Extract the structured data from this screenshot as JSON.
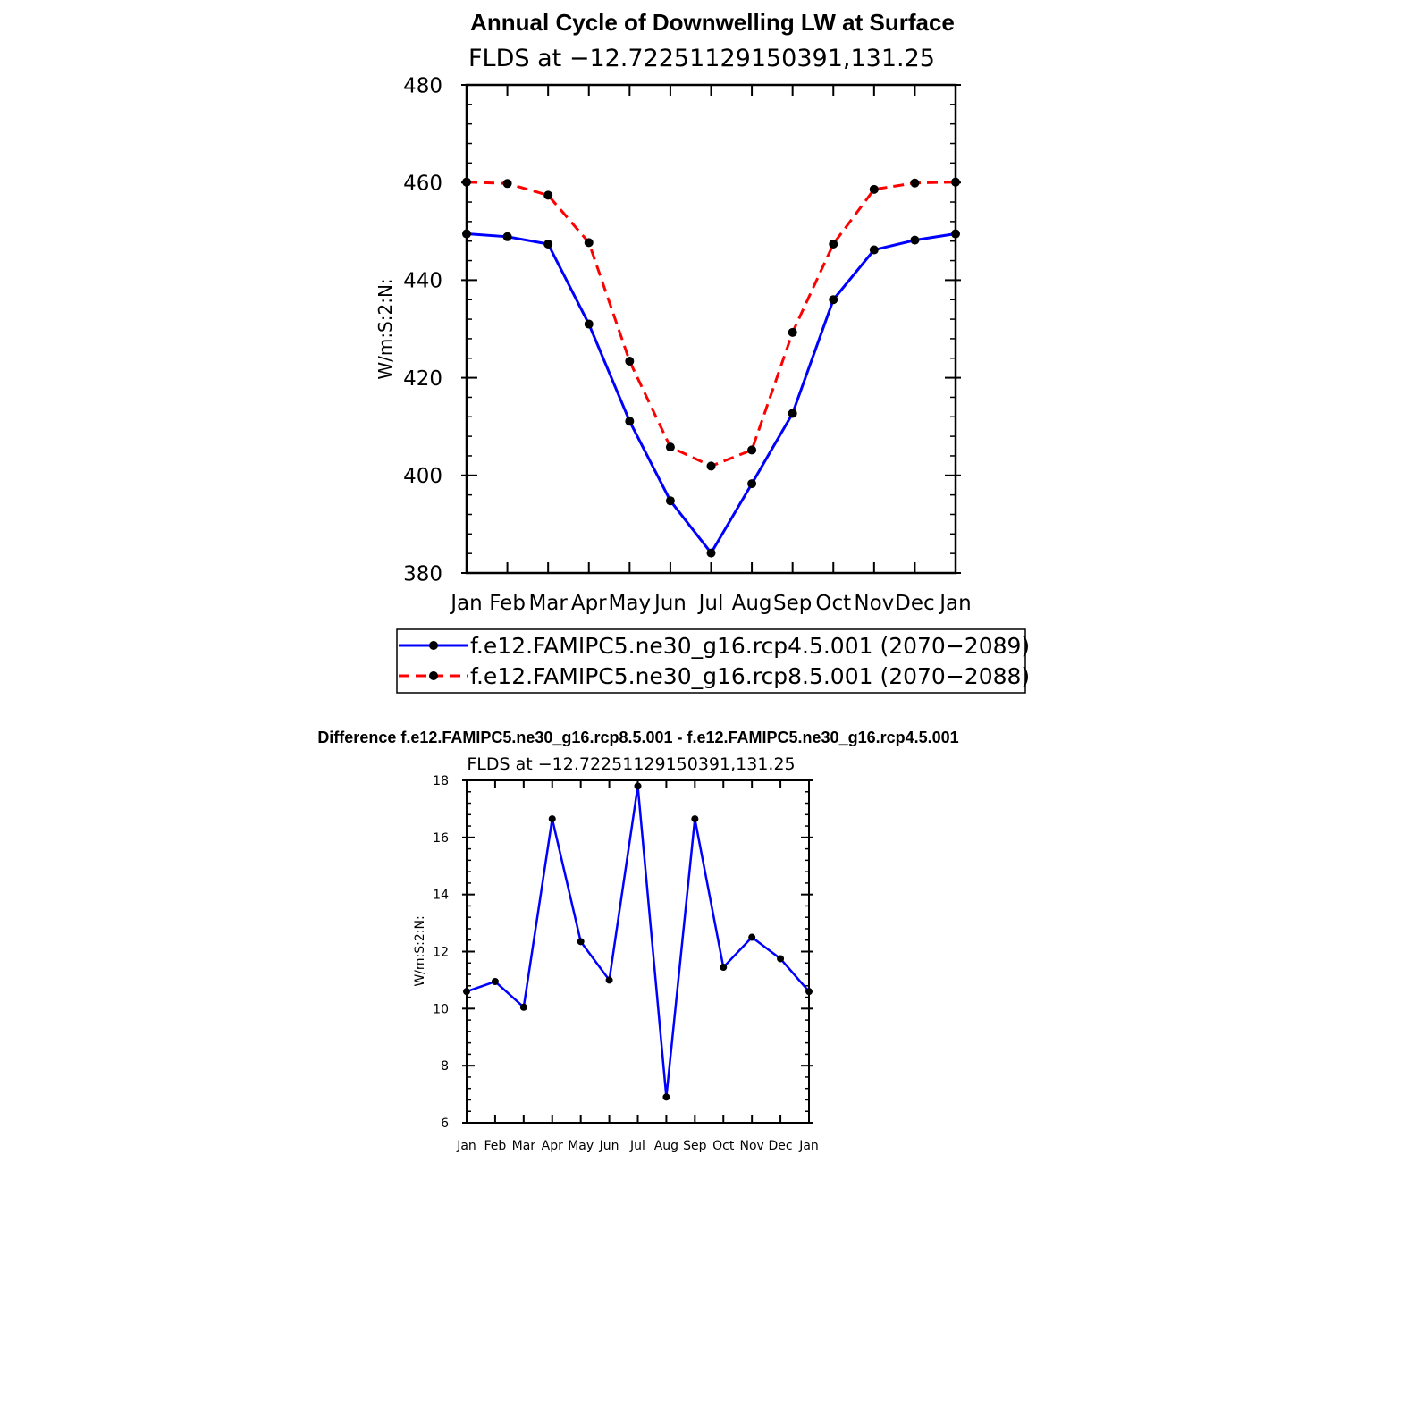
{
  "chart_data": [
    {
      "type": "line",
      "title": "Annual Cycle of Downwelling LW at Surface",
      "subtitle": "FLDS at −12.72251129150391,131.25",
      "ylabel": "W/m:S:2:N:",
      "xlabel": "",
      "categories": [
        "Jan",
        "Feb",
        "Mar",
        "Apr",
        "May",
        "Jun",
        "Jul",
        "Aug",
        "Sep",
        "Oct",
        "Nov",
        "Dec",
        "Jan"
      ],
      "ylim": [
        380,
        480
      ],
      "yticks": [
        380,
        400,
        420,
        440,
        460,
        480
      ],
      "legend_position": "bottom",
      "series": [
        {
          "name": "f.e12.FAMIPC5.ne30_g16.rcp4.5.001 (2070−2089)",
          "color": "#0000ff",
          "style": "solid",
          "values": [
            449.5,
            448.9,
            447.4,
            431.0,
            411.1,
            394.8,
            384.1,
            398.3,
            412.7,
            436.0,
            446.2,
            448.2,
            449.5
          ]
        },
        {
          "name": "f.e12.FAMIPC5.ne30_g16.rcp8.5.001 (2070−2088)",
          "color": "#ff0000",
          "style": "dashed",
          "values": [
            460.1,
            459.8,
            457.4,
            447.7,
            423.4,
            405.8,
            401.9,
            405.2,
            429.3,
            447.4,
            458.6,
            459.9,
            460.1
          ]
        }
      ]
    },
    {
      "type": "line",
      "title": "Difference f.e12.FAMIPC5.ne30_g16.rcp8.5.001 - f.e12.FAMIPC5.ne30_g16.rcp4.5.001",
      "subtitle": "FLDS at −12.72251129150391,131.25",
      "ylabel": "W/m:S:2:N:",
      "xlabel": "",
      "categories": [
        "Jan",
        "Feb",
        "Mar",
        "Apr",
        "May",
        "Jun",
        "Jul",
        "Aug",
        "Sep",
        "Oct",
        "Nov",
        "Dec",
        "Jan"
      ],
      "ylim": [
        6,
        18
      ],
      "yticks": [
        6,
        8,
        10,
        12,
        14,
        16,
        18
      ],
      "series": [
        {
          "color": "#0000ff",
          "style": "solid",
          "values": [
            10.6,
            10.95,
            10.05,
            16.65,
            12.35,
            11.0,
            17.8,
            6.9,
            16.65,
            11.45,
            12.5,
            11.75,
            10.6
          ]
        }
      ]
    }
  ]
}
